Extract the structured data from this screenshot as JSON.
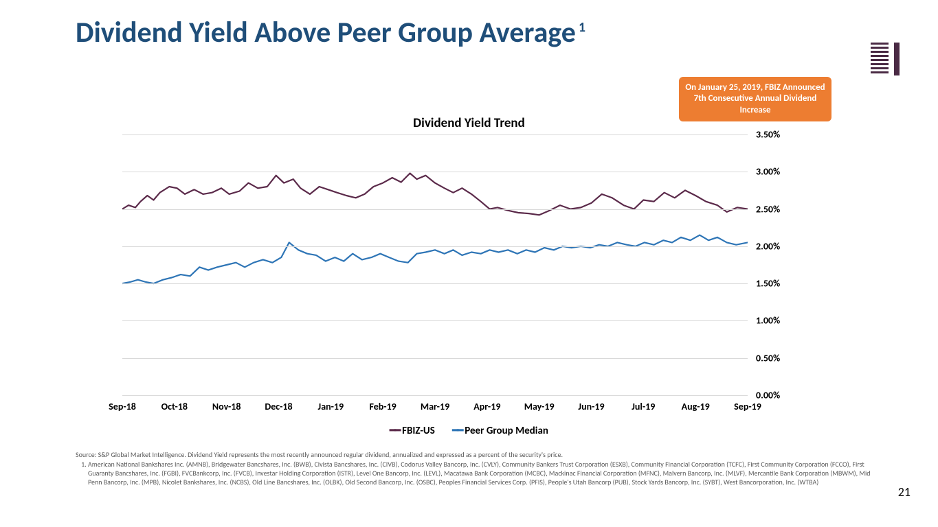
{
  "title": "Dividend Yield Above Peer Group Average",
  "title_sup": "1",
  "title_color": "#1f4e79",
  "title_fontsize": 42,
  "callout": {
    "text": "On January 25, 2019, FBIZ Announced 7th Consecutive Annual Dividend Increase",
    "bg_color": "#ed7d31",
    "text_color": "#ffffff",
    "fontsize": 13
  },
  "chart": {
    "type": "line",
    "title": "Dividend Yield Trend",
    "title_fontsize": 19,
    "background_color": "#ffffff",
    "grid_color": "#d9d9d9",
    "ylim": [
      0.0,
      3.5
    ],
    "ytick_step": 0.5,
    "ytick_labels": [
      "0.00%",
      "0.50%",
      "1.00%",
      "1.50%",
      "2.00%",
      "2.50%",
      "3.00%",
      "3.50%"
    ],
    "xlim": [
      0,
      12
    ],
    "xtick_positions": [
      0,
      1,
      2,
      3,
      4,
      5,
      6,
      7,
      8,
      9,
      10,
      11,
      12
    ],
    "xtick_labels": [
      "Sep-18",
      "Oct-18",
      "Nov-18",
      "Dec-18",
      "Jan-19",
      "Feb-19",
      "Mar-19",
      "Apr-19",
      "May-19",
      "Jun-19",
      "Jul-19",
      "Aug-19",
      "Sep-19"
    ],
    "label_fontsize": 14,
    "series": [
      {
        "name": "FBIZ-US",
        "color": "#5b2a4a",
        "line_width": 2.2,
        "x": [
          0.0,
          0.12,
          0.25,
          0.35,
          0.48,
          0.6,
          0.72,
          0.9,
          1.05,
          1.2,
          1.38,
          1.55,
          1.72,
          1.9,
          2.05,
          2.25,
          2.42,
          2.6,
          2.78,
          2.95,
          3.1,
          3.28,
          3.42,
          3.6,
          3.78,
          3.95,
          4.12,
          4.3,
          4.48,
          4.65,
          4.82,
          5.0,
          5.18,
          5.35,
          5.52,
          5.65,
          5.82,
          6.0,
          6.18,
          6.35,
          6.52,
          6.7,
          6.88,
          7.05,
          7.2,
          7.4,
          7.6,
          7.8,
          8.0,
          8.2,
          8.4,
          8.6,
          8.8,
          9.0,
          9.2,
          9.4,
          9.62,
          9.82,
          10.0,
          10.2,
          10.4,
          10.6,
          10.8,
          11.0,
          11.2,
          11.42,
          11.6,
          11.8,
          12.0
        ],
        "y": [
          2.5,
          2.55,
          2.52,
          2.6,
          2.68,
          2.62,
          2.72,
          2.8,
          2.78,
          2.7,
          2.76,
          2.7,
          2.72,
          2.78,
          2.7,
          2.74,
          2.85,
          2.78,
          2.8,
          2.95,
          2.85,
          2.9,
          2.78,
          2.7,
          2.8,
          2.76,
          2.72,
          2.68,
          2.65,
          2.7,
          2.8,
          2.85,
          2.92,
          2.86,
          2.98,
          2.9,
          2.95,
          2.85,
          2.78,
          2.72,
          2.78,
          2.7,
          2.6,
          2.5,
          2.52,
          2.48,
          2.45,
          2.44,
          2.42,
          2.48,
          2.55,
          2.5,
          2.52,
          2.58,
          2.7,
          2.65,
          2.55,
          2.5,
          2.62,
          2.6,
          2.72,
          2.65,
          2.75,
          2.68,
          2.6,
          2.55,
          2.46,
          2.52,
          2.5
        ]
      },
      {
        "name": "Peer Group Median",
        "color": "#2e75b6",
        "line_width": 2.2,
        "x": [
          0.0,
          0.15,
          0.3,
          0.45,
          0.6,
          0.78,
          0.95,
          1.12,
          1.3,
          1.48,
          1.65,
          1.82,
          2.0,
          2.18,
          2.35,
          2.52,
          2.7,
          2.88,
          3.05,
          3.2,
          3.38,
          3.55,
          3.72,
          3.9,
          4.08,
          4.25,
          4.42,
          4.6,
          4.78,
          4.95,
          5.12,
          5.3,
          5.48,
          5.65,
          5.82,
          6.0,
          6.18,
          6.35,
          6.52,
          6.7,
          6.88,
          7.05,
          7.22,
          7.4,
          7.58,
          7.75,
          7.92,
          8.1,
          8.28,
          8.45,
          8.62,
          8.8,
          8.98,
          9.15,
          9.32,
          9.5,
          9.68,
          9.85,
          10.02,
          10.2,
          10.38,
          10.55,
          10.72,
          10.9,
          11.08,
          11.25,
          11.42,
          11.6,
          11.78,
          12.0
        ],
        "y": [
          1.5,
          1.52,
          1.55,
          1.52,
          1.5,
          1.55,
          1.58,
          1.62,
          1.6,
          1.72,
          1.68,
          1.72,
          1.75,
          1.78,
          1.72,
          1.78,
          1.82,
          1.78,
          1.85,
          2.05,
          1.95,
          1.9,
          1.88,
          1.8,
          1.85,
          1.8,
          1.9,
          1.82,
          1.85,
          1.9,
          1.85,
          1.8,
          1.78,
          1.9,
          1.92,
          1.95,
          1.9,
          1.95,
          1.88,
          1.92,
          1.9,
          1.95,
          1.92,
          1.95,
          1.9,
          1.95,
          1.92,
          1.98,
          1.95,
          2.0,
          1.98,
          2.0,
          1.98,
          2.02,
          2.0,
          2.05,
          2.02,
          2.0,
          2.05,
          2.02,
          2.08,
          2.05,
          2.12,
          2.08,
          2.15,
          2.08,
          2.12,
          2.05,
          2.02,
          2.05
        ]
      }
    ],
    "legend": [
      "FBIZ-US",
      "Peer Group Median"
    ]
  },
  "footnote": {
    "source": "Source: S&P Global Market Intelligence. Dividend Yield represents the most recently announced regular dividend, annualized and expressed as a percent of the security's price.",
    "note1": "American National Bankshares Inc. (AMNB), Bridgewater Bancshares, Inc. (BWB), Civista Bancshares, Inc. (CIVB), Codorus Valley Bancorp, Inc. (CVLY), Community Bankers Trust Corporation (ESXB), Community Financial Corporation (TCFC), First Community Corporation (FCCO), First Guaranty Bancshares, Inc. (FGBI), FVCBankcorp, Inc. (FVCB), Investar Holding Corporation (ISTR), Level One Bancorp, Inc. (LEVL), Macatawa Bank Corporation (MCBC), Mackinac Financial Corporation (MFNC), Malvern Bancorp, Inc. (MLVF), Mercantile Bank Corporation (MBWM), Mid Penn Bancorp, Inc. (MPB), Nicolet Bankshares, Inc. (NCBS), Old Line Bancshares, Inc. (OLBK), Old Second Bancorp, Inc. (OSBC), Peoples Financial Services Corp. (PFIS), People's Utah Bancorp (PUB), Stock Yards Bancorp, Inc. (SYBT), West Bancorporation, Inc. (WTBA)",
    "color": "#595959",
    "fontsize": 10
  },
  "page_number": "21",
  "logo_colors": {
    "bars": "#4a2a44",
    "accent": "#4a2a44"
  }
}
